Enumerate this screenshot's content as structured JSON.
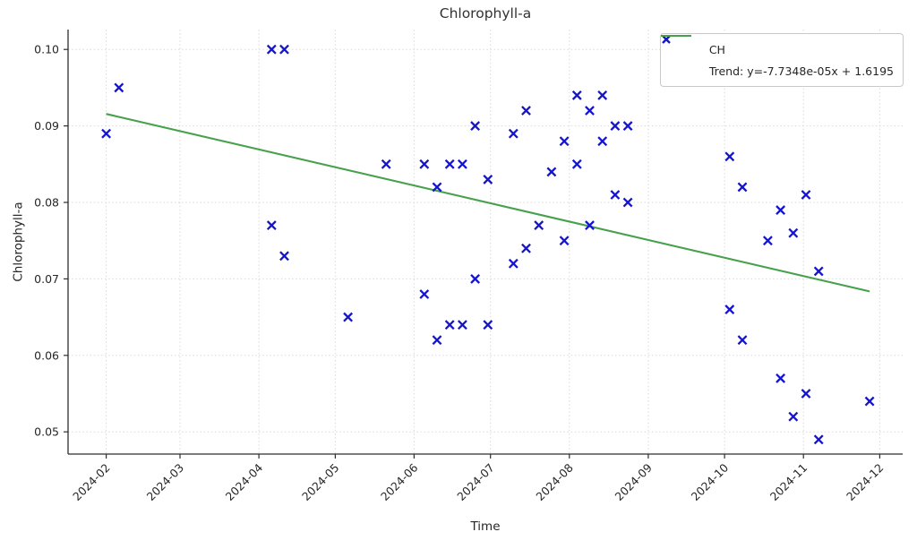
{
  "chart_data": {
    "type": "scatter",
    "title": "Chlorophyll-a",
    "xlabel": "Time",
    "ylabel": "Chlorophyll-a",
    "grid": true,
    "xlim": [
      "2024-01-17",
      "2024-12-10"
    ],
    "ylim": [
      0.0471,
      0.1026
    ],
    "x_ticks": [
      {
        "label": "2024-02",
        "date": "2024-02-01"
      },
      {
        "label": "2024-03",
        "date": "2024-03-01"
      },
      {
        "label": "2024-04",
        "date": "2024-04-01"
      },
      {
        "label": "2024-05",
        "date": "2024-05-01"
      },
      {
        "label": "2024-06",
        "date": "2024-06-01"
      },
      {
        "label": "2024-07",
        "date": "2024-07-01"
      },
      {
        "label": "2024-08",
        "date": "2024-08-01"
      },
      {
        "label": "2024-09",
        "date": "2024-09-01"
      },
      {
        "label": "2024-10",
        "date": "2024-10-01"
      },
      {
        "label": "2024-11",
        "date": "2024-11-01"
      },
      {
        "label": "2024-12",
        "date": "2024-12-01"
      }
    ],
    "y_ticks": [
      {
        "label": "0.05",
        "value": 0.05
      },
      {
        "label": "0.06",
        "value": 0.06
      },
      {
        "label": "0.07",
        "value": 0.07
      },
      {
        "label": "0.08",
        "value": 0.08
      },
      {
        "label": "0.09",
        "value": 0.09
      },
      {
        "label": "0.10",
        "value": 0.1
      }
    ],
    "colors": {
      "marker": "#1515cd",
      "trend": "#47a14c"
    },
    "legend": {
      "position": "upper right",
      "entries": [
        {
          "label": "CH",
          "marker": "x",
          "color": "#1515cd"
        },
        {
          "label": "Trend: y=-7.7348e-05x + 1.6195",
          "marker": "line",
          "color": "#47a14c"
        }
      ]
    },
    "series": [
      {
        "name": "CH",
        "marker": "x",
        "color": "#1515cd",
        "points": [
          [
            "2024-02-01",
            0.089
          ],
          [
            "2024-02-06",
            0.095
          ],
          [
            "2024-04-06",
            0.1
          ],
          [
            "2024-04-06",
            0.077
          ],
          [
            "2024-04-11",
            0.1
          ],
          [
            "2024-04-11",
            0.073
          ],
          [
            "2024-05-06",
            0.065
          ],
          [
            "2024-05-21",
            0.085
          ],
          [
            "2024-06-05",
            0.085
          ],
          [
            "2024-06-05",
            0.068
          ],
          [
            "2024-06-10",
            0.082
          ],
          [
            "2024-06-10",
            0.062
          ],
          [
            "2024-06-15",
            0.085
          ],
          [
            "2024-06-15",
            0.064
          ],
          [
            "2024-06-20",
            0.085
          ],
          [
            "2024-06-20",
            0.064
          ],
          [
            "2024-06-25",
            0.09
          ],
          [
            "2024-06-25",
            0.07
          ],
          [
            "2024-06-30",
            0.083
          ],
          [
            "2024-06-30",
            0.064
          ],
          [
            "2024-07-10",
            0.089
          ],
          [
            "2024-07-10",
            0.072
          ],
          [
            "2024-07-15",
            0.092
          ],
          [
            "2024-07-15",
            0.074
          ],
          [
            "2024-07-20",
            0.077
          ],
          [
            "2024-07-25",
            0.084
          ],
          [
            "2024-07-30",
            0.088
          ],
          [
            "2024-07-30",
            0.075
          ],
          [
            "2024-08-04",
            0.094
          ],
          [
            "2024-08-04",
            0.085
          ],
          [
            "2024-08-09",
            0.092
          ],
          [
            "2024-08-09",
            0.077
          ],
          [
            "2024-08-14",
            0.094
          ],
          [
            "2024-08-14",
            0.088
          ],
          [
            "2024-08-19",
            0.09
          ],
          [
            "2024-08-19",
            0.081
          ],
          [
            "2024-08-24",
            0.09
          ],
          [
            "2024-08-24",
            0.08
          ],
          [
            "2024-10-03",
            0.086
          ],
          [
            "2024-10-03",
            0.066
          ],
          [
            "2024-10-08",
            0.082
          ],
          [
            "2024-10-08",
            0.062
          ],
          [
            "2024-10-18",
            0.075
          ],
          [
            "2024-10-23",
            0.079
          ],
          [
            "2024-10-23",
            0.057
          ],
          [
            "2024-10-28",
            0.076
          ],
          [
            "2024-10-28",
            0.052
          ],
          [
            "2024-11-02",
            0.081
          ],
          [
            "2024-11-02",
            0.055
          ],
          [
            "2024-11-07",
            0.071
          ],
          [
            "2024-11-07",
            0.049
          ],
          [
            "2024-11-27",
            0.054
          ]
        ]
      }
    ],
    "trend": {
      "name": "Trend",
      "slope": -7.7348e-05,
      "intercept": 1.6195,
      "x_unit": "days_since_1970-01-01",
      "start": "2024-02-01",
      "end": "2024-11-27",
      "color": "#47a14c"
    }
  }
}
